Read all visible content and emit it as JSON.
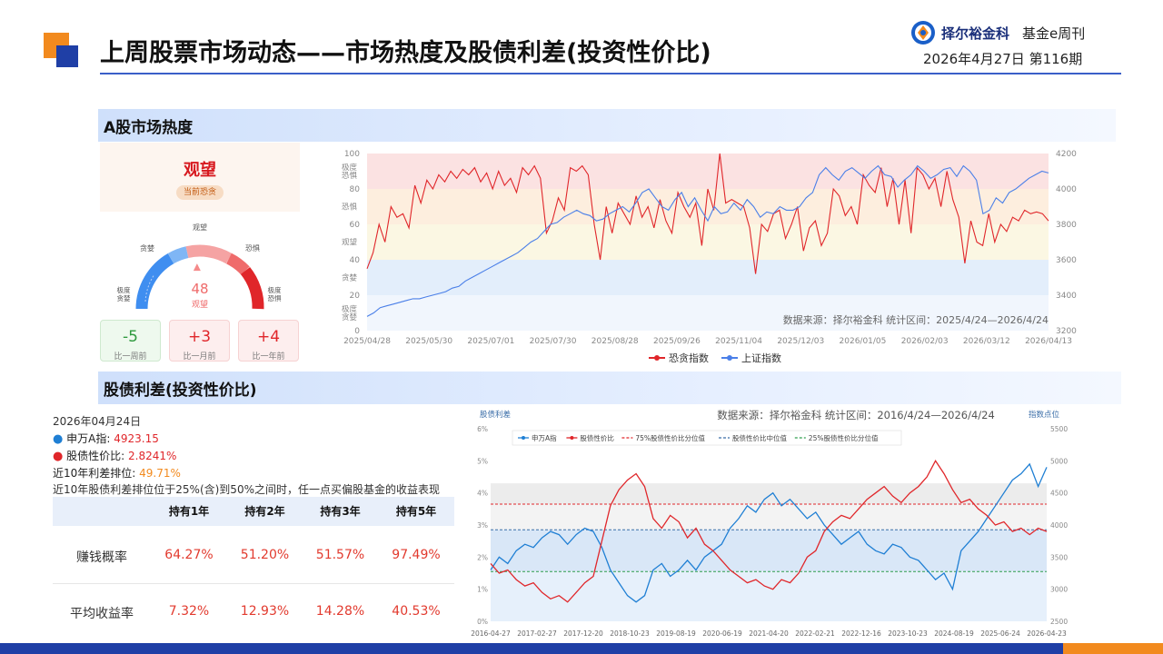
{
  "header": {
    "title": "上周股票市场动态——市场热度及股债利差(投资性价比)",
    "brand_name": "择尔裕金科",
    "publication": "基金e周刊",
    "issue": "2026年4月27日  第116期"
  },
  "sections": {
    "heat_title": "A股市场热度",
    "spread_title": "股债利差(投资性价比)"
  },
  "sentiment": {
    "status": "观望",
    "tag": "当前恐贪",
    "value": "48",
    "value_label": "观望",
    "gauge_labels": {
      "top": "观望",
      "upper_left": "贪婪",
      "upper_right": "恐惧",
      "left_top": "极度",
      "left_bottom": "贪婪",
      "right_top": "极度",
      "right_bottom": "恐惧"
    },
    "gauge_value": 48,
    "comparisons": [
      {
        "value": "-5",
        "label": "比一周前"
      },
      {
        "value": "+3",
        "label": "比一月前"
      },
      {
        "value": "+4",
        "label": "比一年前"
      }
    ]
  },
  "chart_data": [
    {
      "type": "line",
      "title": "",
      "source": "数据来源：择尔裕金科 统计区间：2025/4/24—2026/4/24",
      "x_ticks": [
        "2025/04/28",
        "2025/05/30",
        "2025/07/01",
        "2025/07/30",
        "2025/08/28",
        "2025/09/26",
        "2025/11/04",
        "2025/12/03",
        "2026/01/05",
        "2026/02/03",
        "2026/03/12",
        "2026/04/13"
      ],
      "ylim_left": [
        0,
        100
      ],
      "left_ticks": [
        0,
        20,
        40,
        60,
        80,
        100
      ],
      "ylim_right": [
        3200,
        4200
      ],
      "right_ticks": [
        3200,
        3400,
        3600,
        3800,
        4000,
        4200
      ],
      "zones": [
        {
          "label": "极度\n恐惧",
          "from": 80,
          "to": 100,
          "color": "#fbe2e2"
        },
        {
          "label": "恐惧",
          "from": 60,
          "to": 80,
          "color": "#fdeede"
        },
        {
          "label": "观望",
          "from": 40,
          "to": 60,
          "color": "#fbf7e3"
        },
        {
          "label": "贪婪",
          "from": 20,
          "to": 40,
          "color": "#e3eefb"
        },
        {
          "label": "极度\n贪婪",
          "from": 0,
          "to": 20,
          "color": "#f1f6fd"
        }
      ],
      "series": [
        {
          "name": "恐贪指数",
          "axis": "left",
          "color": "#e0262a",
          "values": [
            35,
            44,
            60,
            50,
            70,
            64,
            66,
            58,
            82,
            72,
            85,
            80,
            88,
            84,
            90,
            86,
            91,
            88,
            92,
            84,
            89,
            80,
            90,
            82,
            86,
            78,
            92,
            88,
            93,
            86,
            55,
            62,
            75,
            68,
            92,
            90,
            93,
            88,
            60,
            40,
            70,
            55,
            72,
            66,
            60,
            76,
            64,
            70,
            58,
            74,
            62,
            55,
            78,
            70,
            64,
            72,
            48,
            80,
            68,
            100,
            72,
            74,
            72,
            70,
            58,
            32,
            60,
            56,
            66,
            68,
            52,
            60,
            70,
            45,
            58,
            62,
            48,
            55,
            80,
            76,
            65,
            70,
            60,
            88,
            82,
            78,
            92,
            70,
            86,
            60,
            85,
            55,
            92,
            88,
            80,
            86,
            70,
            90,
            74,
            64,
            38,
            62,
            50,
            48,
            66,
            50,
            60,
            56,
            64,
            62,
            68,
            66,
            67,
            66,
            62
          ]
        },
        {
          "name": "上证指数",
          "axis": "right",
          "color": "#4a7fe8",
          "values": [
            3280,
            3300,
            3330,
            3340,
            3350,
            3360,
            3370,
            3380,
            3380,
            3390,
            3400,
            3410,
            3420,
            3440,
            3450,
            3480,
            3500,
            3520,
            3540,
            3560,
            3580,
            3600,
            3620,
            3640,
            3670,
            3700,
            3720,
            3760,
            3800,
            3810,
            3840,
            3860,
            3880,
            3860,
            3850,
            3820,
            3830,
            3860,
            3880,
            3900,
            3870,
            3920,
            3980,
            4000,
            3950,
            3900,
            3880,
            3940,
            3980,
            3900,
            3950,
            3880,
            3820,
            3900,
            3860,
            3870,
            3920,
            3880,
            3940,
            3900,
            3840,
            3870,
            3860,
            3900,
            3880,
            3880,
            3900,
            3950,
            3980,
            4080,
            4120,
            4080,
            4050,
            4100,
            4120,
            4090,
            4060,
            4100,
            4130,
            4080,
            4070,
            4010,
            4050,
            4080,
            4130,
            4100,
            4060,
            4080,
            4110,
            4120,
            4070,
            4130,
            4100,
            4050,
            3860,
            3880,
            3950,
            3920,
            3980,
            4000,
            4030,
            4060,
            4080,
            4100,
            4090
          ]
        }
      ]
    },
    {
      "type": "line",
      "title": "",
      "source": "数据来源：择尔裕金科 统计区间：2016/4/24—2026/4/24",
      "left_axis_label": "股债利差",
      "right_axis_label": "指数点位",
      "x_ticks": [
        "2016-04-27",
        "2017-02-27",
        "2017-12-20",
        "2018-10-23",
        "2019-08-19",
        "2020-06-19",
        "2021-04-20",
        "2022-02-21",
        "2022-12-16",
        "2023-10-23",
        "2024-08-19",
        "2025-06-24",
        "2026-04-23"
      ],
      "ylim_left": [
        0,
        6
      ],
      "left_ticks": [
        "0%",
        "1%",
        "2%",
        "3%",
        "4%",
        "5%",
        "6%"
      ],
      "ylim_right": [
        2500,
        5500
      ],
      "right_ticks": [
        2500,
        3000,
        3500,
        4000,
        4500,
        5000,
        5500
      ],
      "reference_lines": [
        {
          "name": "75%股债性价比分位值",
          "value": 3.65,
          "color": "#e0262a"
        },
        {
          "name": "股债性价比中位值",
          "value": 2.85,
          "color": "#3b6ea8"
        },
        {
          "name": "25%股债性价比分位值",
          "value": 1.55,
          "color": "#2f9e4e"
        }
      ],
      "series": [
        {
          "name": "申万A指",
          "axis": "right",
          "color": "#1f7fd4",
          "values": [
            3300,
            3500,
            3400,
            3600,
            3700,
            3650,
            3800,
            3900,
            3850,
            3700,
            3850,
            3950,
            3900,
            3650,
            3300,
            3100,
            2900,
            2800,
            2900,
            3300,
            3400,
            3200,
            3300,
            3450,
            3300,
            3500,
            3600,
            3700,
            3950,
            4100,
            4300,
            4200,
            4400,
            4500,
            4300,
            4400,
            4250,
            4100,
            4200,
            4000,
            3850,
            3700,
            3800,
            3900,
            3700,
            3600,
            3550,
            3700,
            3650,
            3500,
            3450,
            3300,
            3150,
            3250,
            3000,
            3600,
            3750,
            3900,
            4100,
            4300,
            4500,
            4700,
            4800,
            4950,
            4600,
            4900
          ]
        },
        {
          "name": "股债性价比",
          "axis": "left",
          "color": "#e0262a",
          "values": [
            1.8,
            1.5,
            1.6,
            1.3,
            1.1,
            1.2,
            0.9,
            0.7,
            0.8,
            0.6,
            0.9,
            1.2,
            1.4,
            2.5,
            3.6,
            4.1,
            4.4,
            4.6,
            4.2,
            3.2,
            2.9,
            3.3,
            3.1,
            2.6,
            2.9,
            2.4,
            2.2,
            1.9,
            1.6,
            1.4,
            1.2,
            1.3,
            1.1,
            1.0,
            1.3,
            1.2,
            1.5,
            2.0,
            2.2,
            2.8,
            3.1,
            3.3,
            3.2,
            3.5,
            3.8,
            4.0,
            4.2,
            3.9,
            3.7,
            4.0,
            4.2,
            4.5,
            5.0,
            4.6,
            4.1,
            3.7,
            3.8,
            3.5,
            3.3,
            3.0,
            3.1,
            2.8,
            2.9,
            2.7,
            2.9,
            2.8
          ]
        }
      ]
    }
  ],
  "spread_info": {
    "date": "2026年04月24日",
    "index_label": "申万A指: ",
    "index_value": "4923.15",
    "spread_label": "股债性价比: ",
    "spread_value": "2.8241%",
    "rank_label": "近10年利差排位: ",
    "rank_value": "49.71%",
    "note": "近10年股债利差排位位于25%(含)到50%之间时，任一点买偏股基金的收益表现"
  },
  "stats_table": {
    "headers": [
      "",
      "持有1年",
      "持有2年",
      "持有3年",
      "持有5年"
    ],
    "rows": [
      {
        "label": "赚钱概率",
        "values": [
          "64.27%",
          "51.20%",
          "51.57%",
          "97.49%"
        ]
      },
      {
        "label": "平均收益率",
        "values": [
          "7.32%",
          "12.93%",
          "14.28%",
          "40.53%"
        ]
      }
    ]
  }
}
